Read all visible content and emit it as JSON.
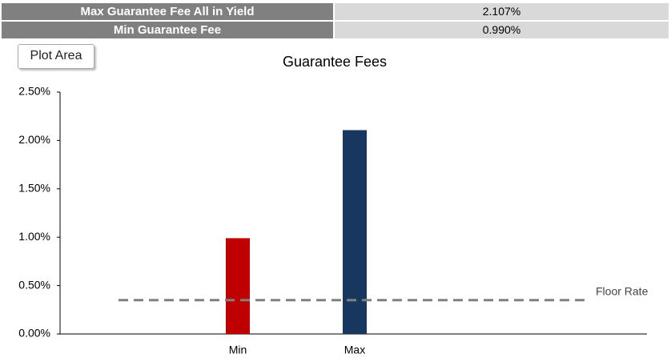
{
  "table": {
    "rows": [
      [
        "Max Guarantee Fee All in Yield",
        "2.107%"
      ],
      [
        "Min Guarantee Fee",
        "0.990%"
      ]
    ]
  },
  "tooltip": "Plot Area",
  "chart_data": {
    "type": "bar",
    "title": "Guarantee Fees",
    "categories": [
      "Min",
      "Max"
    ],
    "values": [
      0.99,
      2.107
    ],
    "colors": [
      "#c00000",
      "#17375e"
    ],
    "ylim": [
      0,
      2.5
    ],
    "yticks": [
      {
        "value": 0,
        "label": "0.00%"
      },
      {
        "value": 0.5,
        "label": "0.50%"
      },
      {
        "value": 1,
        "label": "1.00%"
      },
      {
        "value": 1.5,
        "label": "1.50%"
      },
      {
        "value": 2,
        "label": "2.00%"
      },
      {
        "value": 2.5,
        "label": "2.50%"
      }
    ],
    "grid": false,
    "reference_line": {
      "label": "Floor Rate",
      "value": 0.35,
      "color": "#808080"
    }
  }
}
